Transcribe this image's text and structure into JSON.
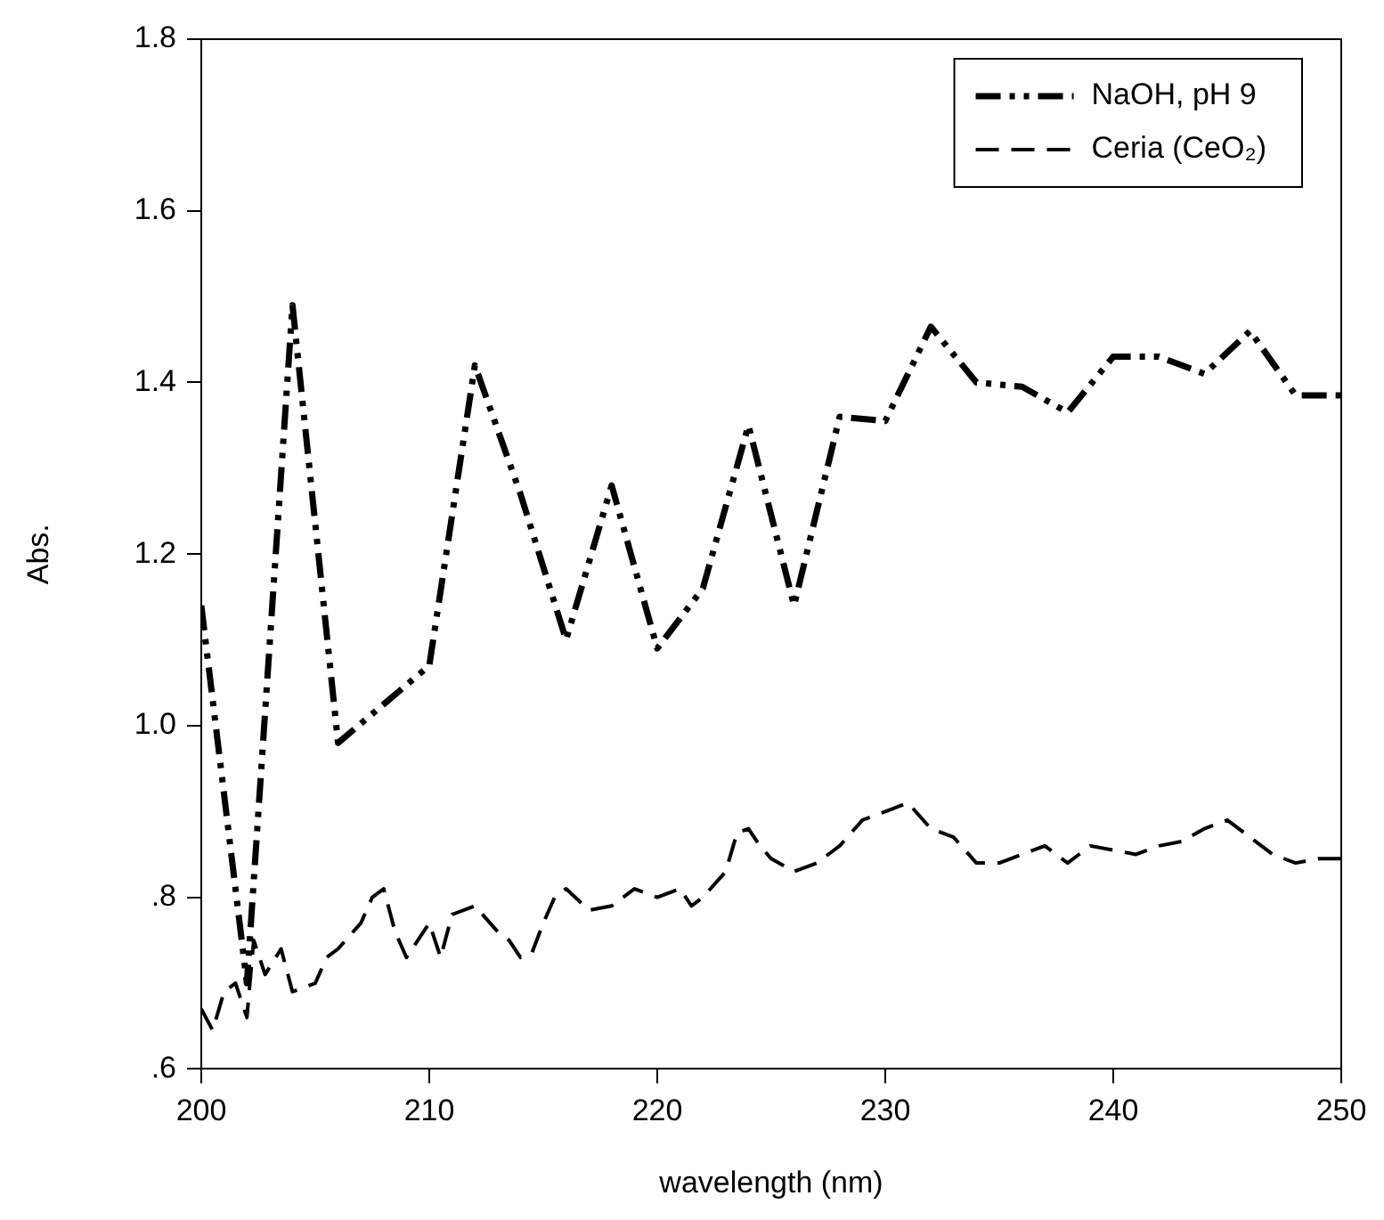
{
  "chart_data": {
    "type": "line",
    "xlabel": "wavelength (nm)",
    "ylabel": "Abs.",
    "xlim": [
      200,
      250
    ],
    "xticks": [
      200,
      210,
      220,
      230,
      240,
      250
    ],
    "ylim": [
      0.6,
      1.8
    ],
    "yticks": [
      {
        "value": 0.6,
        "label": ".6"
      },
      {
        "value": 0.8,
        "label": ".8"
      },
      {
        "value": 1.0,
        "label": "1.0"
      },
      {
        "value": 1.2,
        "label": "1.2"
      },
      {
        "value": 1.4,
        "label": "1.4"
      },
      {
        "value": 1.6,
        "label": "1.6"
      },
      {
        "value": 1.8,
        "label": "1.8"
      }
    ],
    "grid": false,
    "legend": "top right",
    "marker": "none",
    "series": [
      {
        "name": "NaOH, pH 9",
        "color": "#000000",
        "line_style": "dashdotdot",
        "x": [
          200,
          202,
          204,
          206,
          210,
          212,
          214,
          216,
          218,
          220,
          222,
          224,
          226,
          228,
          230,
          232,
          234,
          236,
          238,
          240,
          242,
          244,
          246,
          248,
          250
        ],
        "values": [
          1.14,
          0.7,
          1.49,
          0.98,
          1.07,
          1.42,
          1.27,
          1.1,
          1.28,
          1.09,
          1.16,
          1.35,
          1.14,
          1.36,
          1.355,
          1.465,
          1.4,
          1.395,
          1.365,
          1.43,
          1.43,
          1.41,
          1.46,
          1.385,
          1.385
        ]
      },
      {
        "name": "Ceria (CeO₂)",
        "color": "#000000",
        "line_style": "dashed",
        "x": [
          200,
          200.5,
          201,
          201.5,
          202,
          202.3,
          202.8,
          203.5,
          204,
          205,
          205.5,
          206,
          207,
          207.5,
          208,
          208.5,
          209,
          209.5,
          210,
          210.5,
          211,
          212,
          213,
          213.5,
          214,
          214.5,
          215,
          215.5,
          216,
          217,
          218,
          219,
          220,
          221,
          221.5,
          222,
          223,
          223.5,
          224,
          224.5,
          225,
          226,
          227,
          228,
          229,
          230,
          231,
          232,
          233,
          234,
          235,
          236,
          237,
          238,
          239,
          240,
          241,
          242,
          243,
          244,
          245,
          246,
          247,
          248,
          249,
          250
        ],
        "values": [
          0.67,
          0.645,
          0.69,
          0.7,
          0.66,
          0.75,
          0.71,
          0.74,
          0.69,
          0.7,
          0.73,
          0.74,
          0.77,
          0.8,
          0.81,
          0.76,
          0.73,
          0.75,
          0.77,
          0.73,
          0.78,
          0.79,
          0.76,
          0.75,
          0.73,
          0.735,
          0.77,
          0.8,
          0.81,
          0.785,
          0.79,
          0.81,
          0.8,
          0.81,
          0.79,
          0.8,
          0.83,
          0.875,
          0.88,
          0.86,
          0.845,
          0.83,
          0.84,
          0.86,
          0.89,
          0.9,
          0.91,
          0.88,
          0.87,
          0.84,
          0.84,
          0.85,
          0.86,
          0.84,
          0.86,
          0.855,
          0.85,
          0.86,
          0.865,
          0.88,
          0.89,
          0.87,
          0.85,
          0.84,
          0.845,
          0.845
        ]
      }
    ]
  }
}
